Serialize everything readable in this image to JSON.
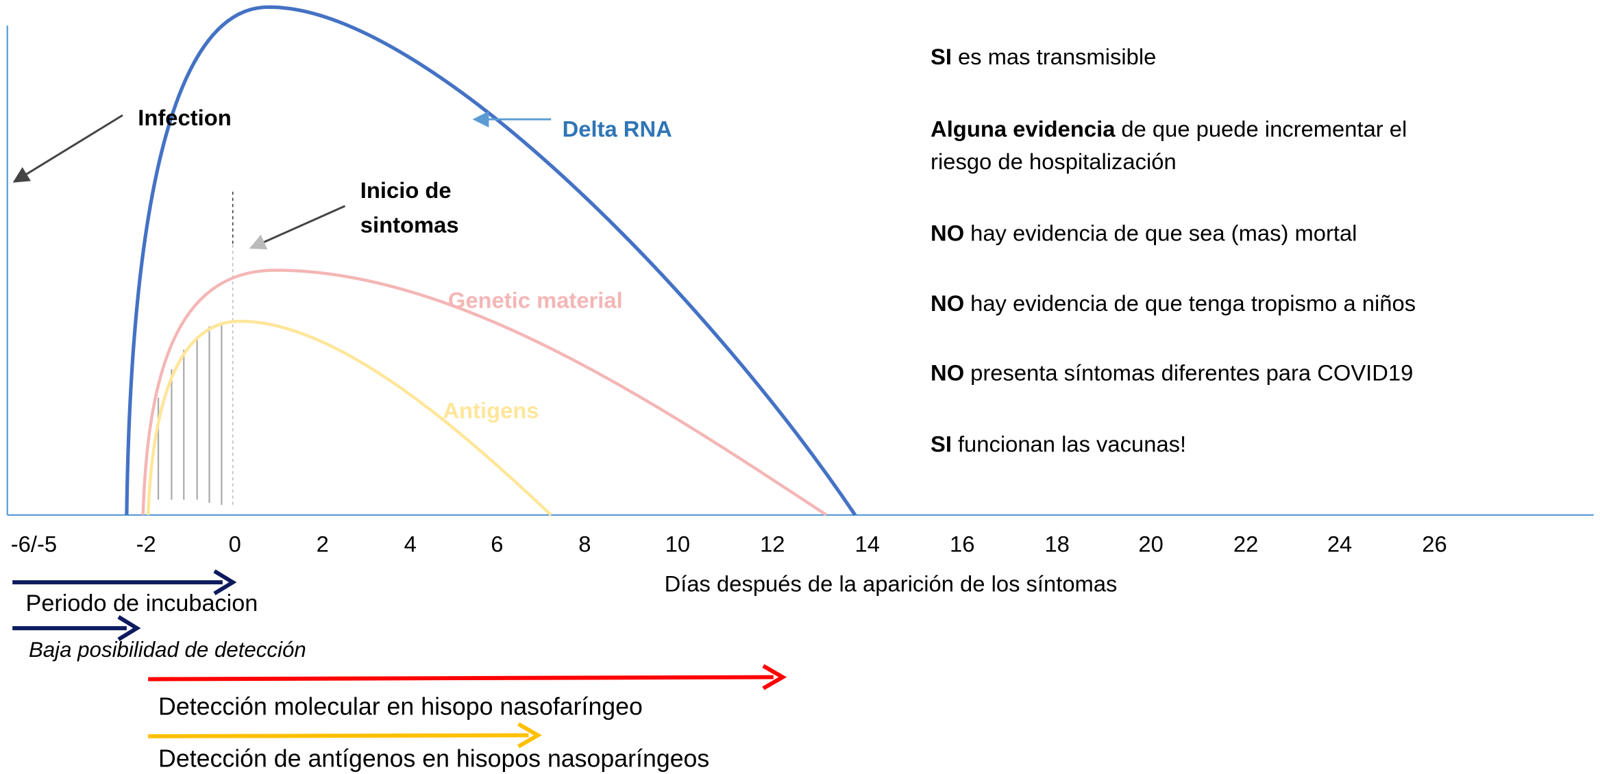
{
  "labels": {
    "infection": "Infection",
    "delta": "Delta RNA",
    "onset": [
      "Inicio de",
      "sintomas"
    ],
    "genetic": "Genetic material",
    "antigens": "Antigens"
  },
  "axis": {
    "ticks": [
      "-6/-5",
      "-2",
      "0",
      "2",
      "4",
      "6",
      "8",
      "10",
      "12",
      "14",
      "16",
      "18",
      "20",
      "22",
      "24",
      "26"
    ],
    "title": "Días después de la aparición de los síntomas"
  },
  "arrows": [
    {
      "label": "Periodo de incubacion"
    },
    {
      "label": "Baja posibilidad de detección"
    },
    {
      "label": "Detección molecular en hisopo nasofaríngeo"
    },
    {
      "label": "Detección de antígenos en hisopos nasoparíngeos"
    }
  ],
  "notes": [
    {
      "bold": "SI",
      "lines": [
        "es mas transmisible"
      ]
    },
    {
      "bold": "Alguna evidencia",
      "lines": [
        "de que puede incrementar el",
        "riesgo de hospitalización"
      ]
    },
    {
      "bold": "NO",
      "lines": [
        "hay evidencia de que sea (mas) mortal"
      ]
    },
    {
      "bold": "NO",
      "lines": [
        "hay evidencia de que tenga tropismo a niños"
      ]
    },
    {
      "bold": "NO",
      "lines": [
        "presenta síntomas diferentes para COVID19"
      ]
    },
    {
      "bold": "SI",
      "lines": [
        "funcionan las vacunas!"
      ]
    }
  ]
}
